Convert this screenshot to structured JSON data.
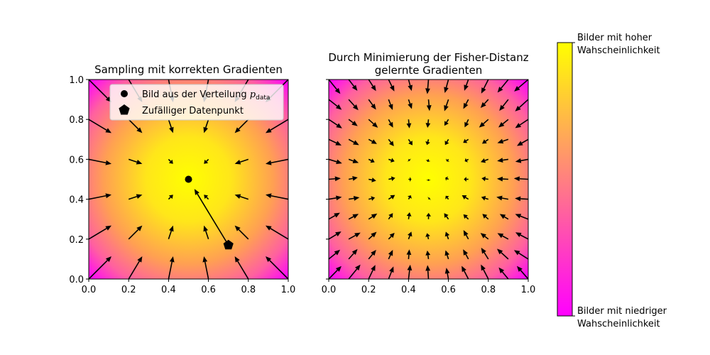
{
  "chart_data": [
    {
      "type": "quiver",
      "title": "Sampling mit korrekten Gradienten",
      "xlim": [
        0,
        1
      ],
      "ylim": [
        0,
        1
      ],
      "xticks": [
        "0.0",
        "0.2",
        "0.4",
        "0.6",
        "0.8",
        "1.0"
      ],
      "yticks": [
        "0.0",
        "0.2",
        "0.4",
        "0.6",
        "0.8",
        "1.0"
      ],
      "grid": false,
      "background": "density centered at (0.5, 0.5), yellow at center to magenta at corners",
      "field": "gradient toward center, magnitude grows with distance",
      "grid_points": [
        0.0,
        0.2,
        0.4,
        0.6,
        0.8,
        1.0
      ],
      "data_point": {
        "x": 0.5,
        "y": 0.5
      },
      "random_point": {
        "x": 0.7,
        "y": 0.17
      },
      "legend": {
        "position": "top",
        "entries": [
          {
            "marker": "circle",
            "label": "Bild aus der Verteilung ",
            "math": "p",
            "math_sub": "data"
          },
          {
            "marker": "pentagon",
            "label": "Zufälliger Datenpunkt"
          }
        ]
      }
    },
    {
      "type": "quiver",
      "title_lines": [
        "Durch Minimierung der Fisher-Distanz",
        "gelernte Gradienten"
      ],
      "xlim": [
        0,
        1
      ],
      "ylim": [
        0,
        1
      ],
      "xticks": [
        "0.0",
        "0.2",
        "0.4",
        "0.6",
        "0.8",
        "1.0"
      ],
      "yticks_labels_shown": false,
      "grid": false,
      "background": "density centered at (0.5, 0.5), yellow at center to magenta at corners",
      "field": "learned gradient toward center with small noise",
      "grid_points": [
        0.0,
        0.1,
        0.2,
        0.3,
        0.4,
        0.5,
        0.6,
        0.7,
        0.8,
        0.9,
        1.0
      ]
    }
  ],
  "colorbar": {
    "colors": {
      "high": "#ffff00",
      "low": "#ff00ff"
    },
    "top_label": [
      "Bilder mit hoher",
      "Wahscheinlichkeit"
    ],
    "bottom_label": [
      "Bilder mit niedriger",
      "Wahscheinlichkeit"
    ]
  }
}
